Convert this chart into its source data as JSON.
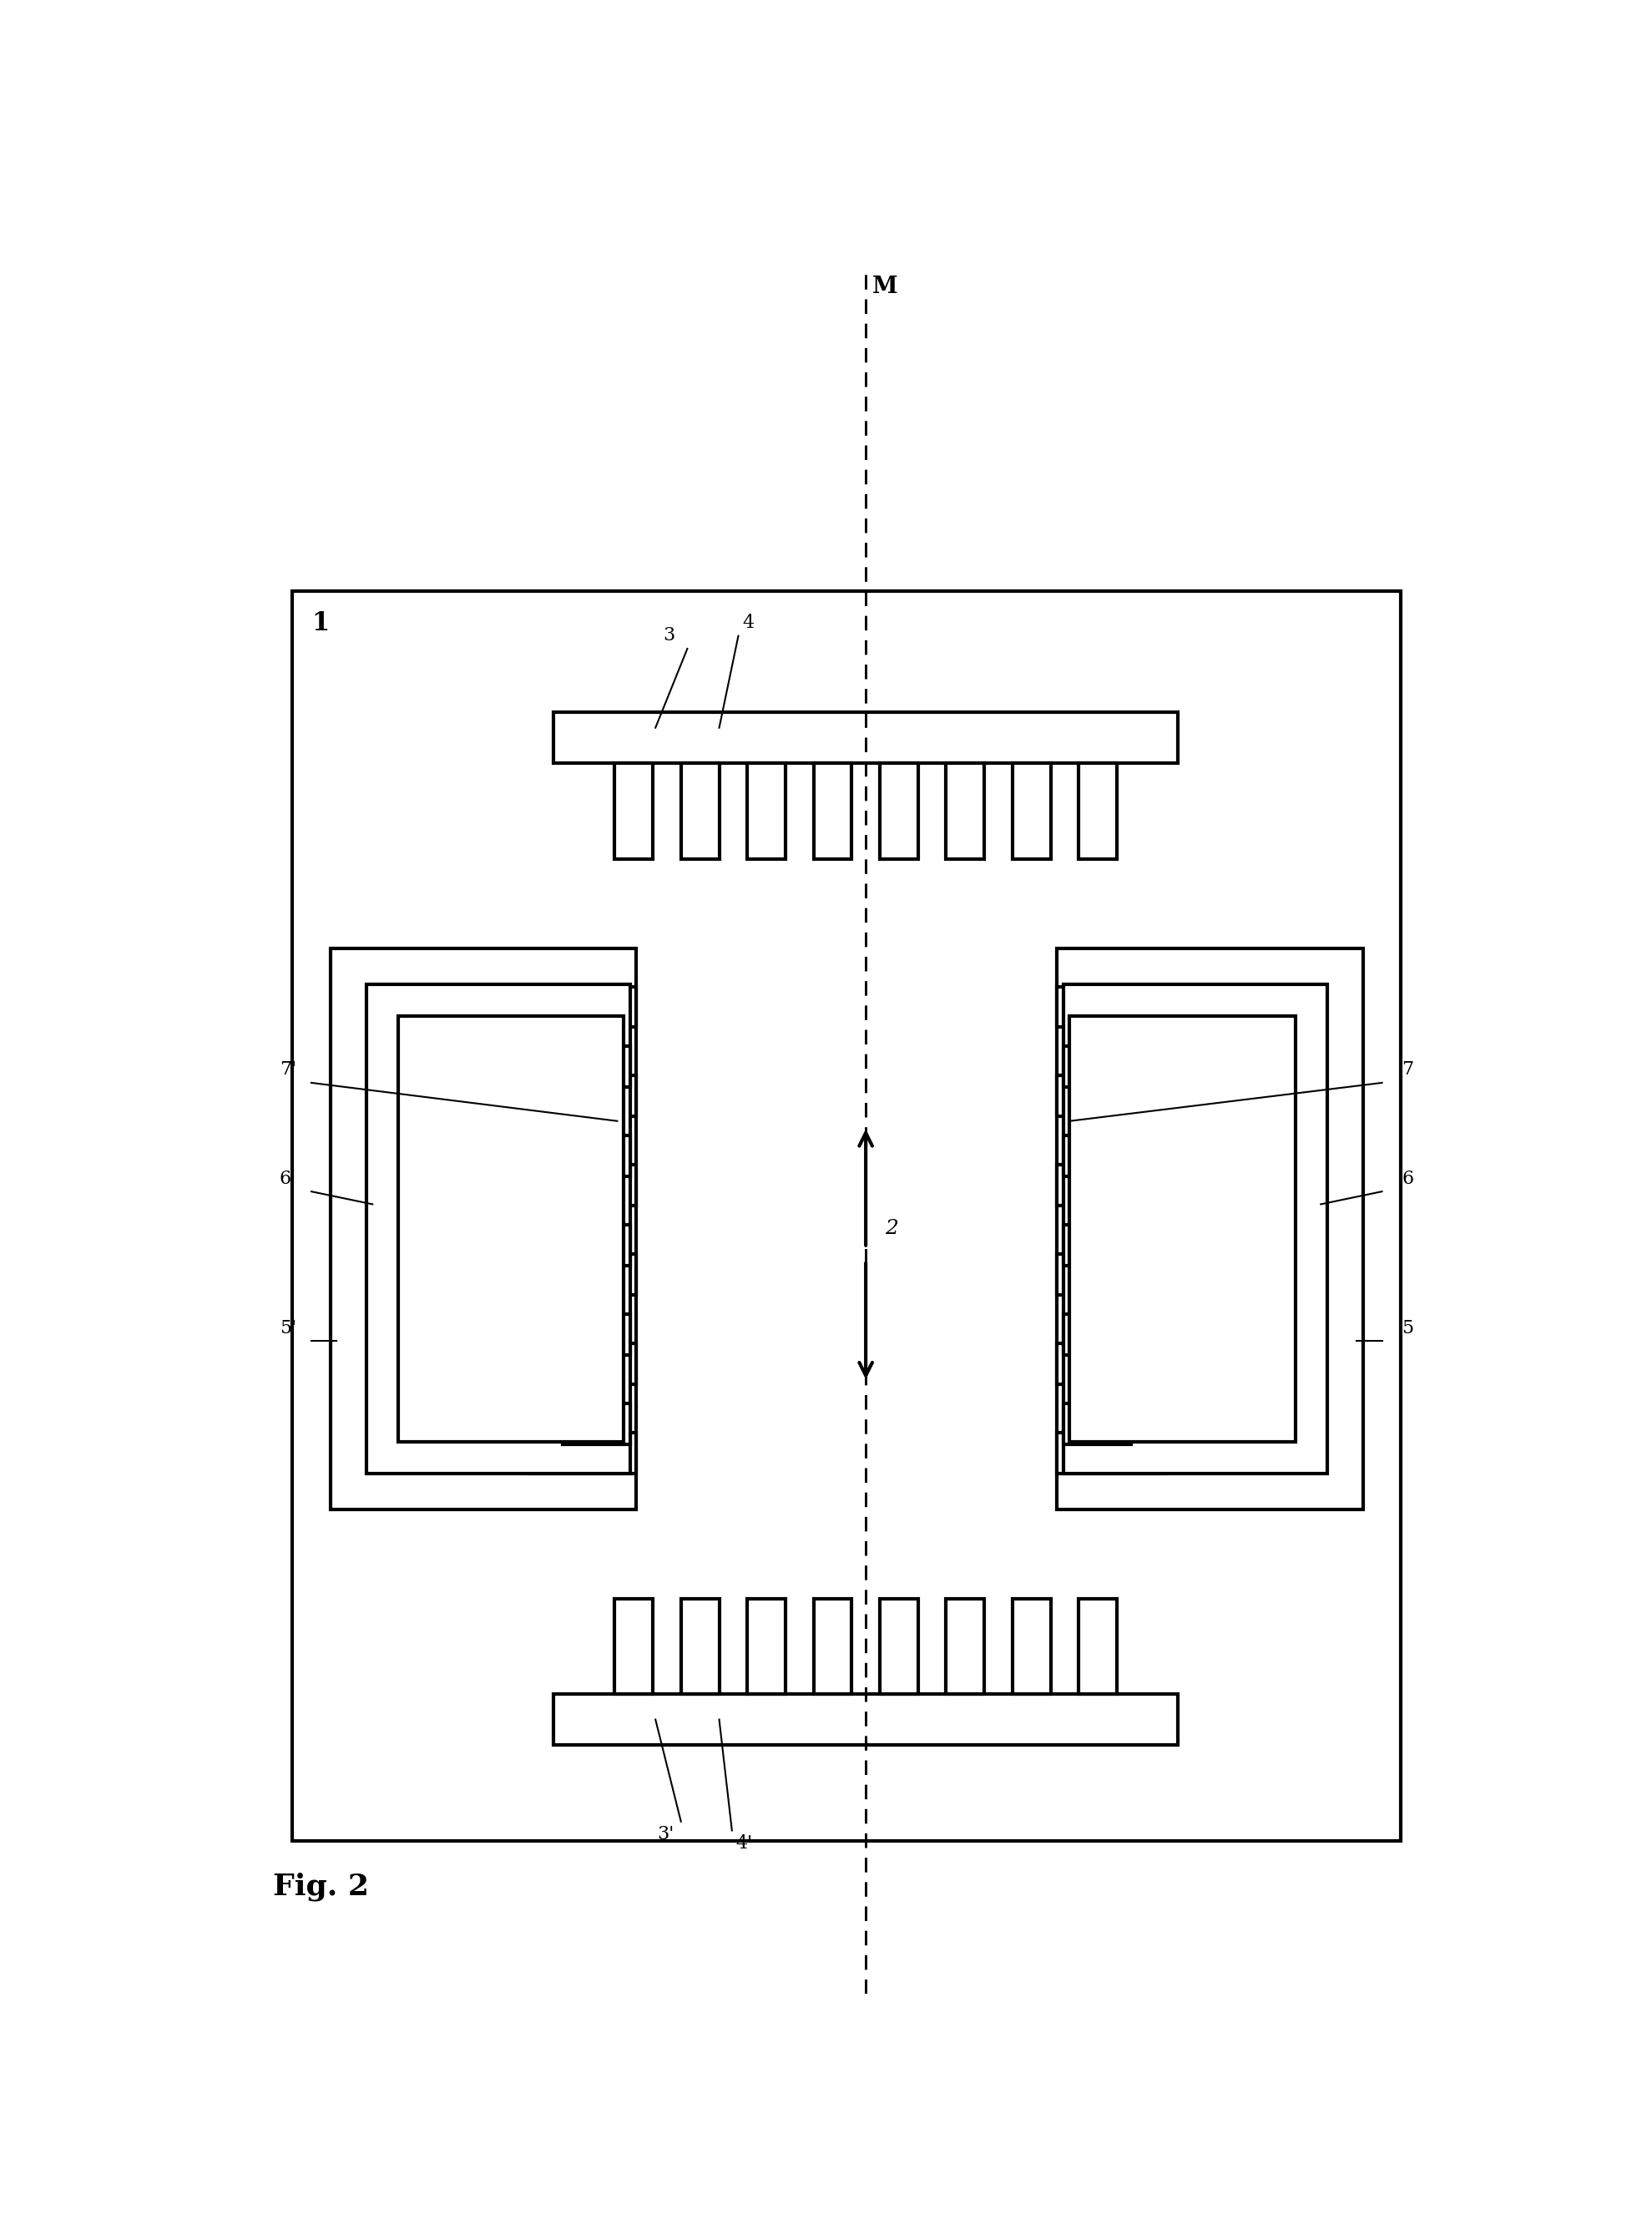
{
  "fig_width": 19.79,
  "fig_height": 26.83,
  "bg_color": "#ffffff",
  "lc": "#000000",
  "lw": 3.0,
  "label_1": "1",
  "label_2": "2",
  "label_3": "3",
  "label_4": "4",
  "label_3p": "3'",
  "label_4p": "4'",
  "label_5": "5",
  "label_5p": "5'",
  "label_6": "6",
  "label_6p": "6'",
  "label_7": "7",
  "label_7p": "7'",
  "label_M": "M",
  "fig_label": "Fig. 2"
}
